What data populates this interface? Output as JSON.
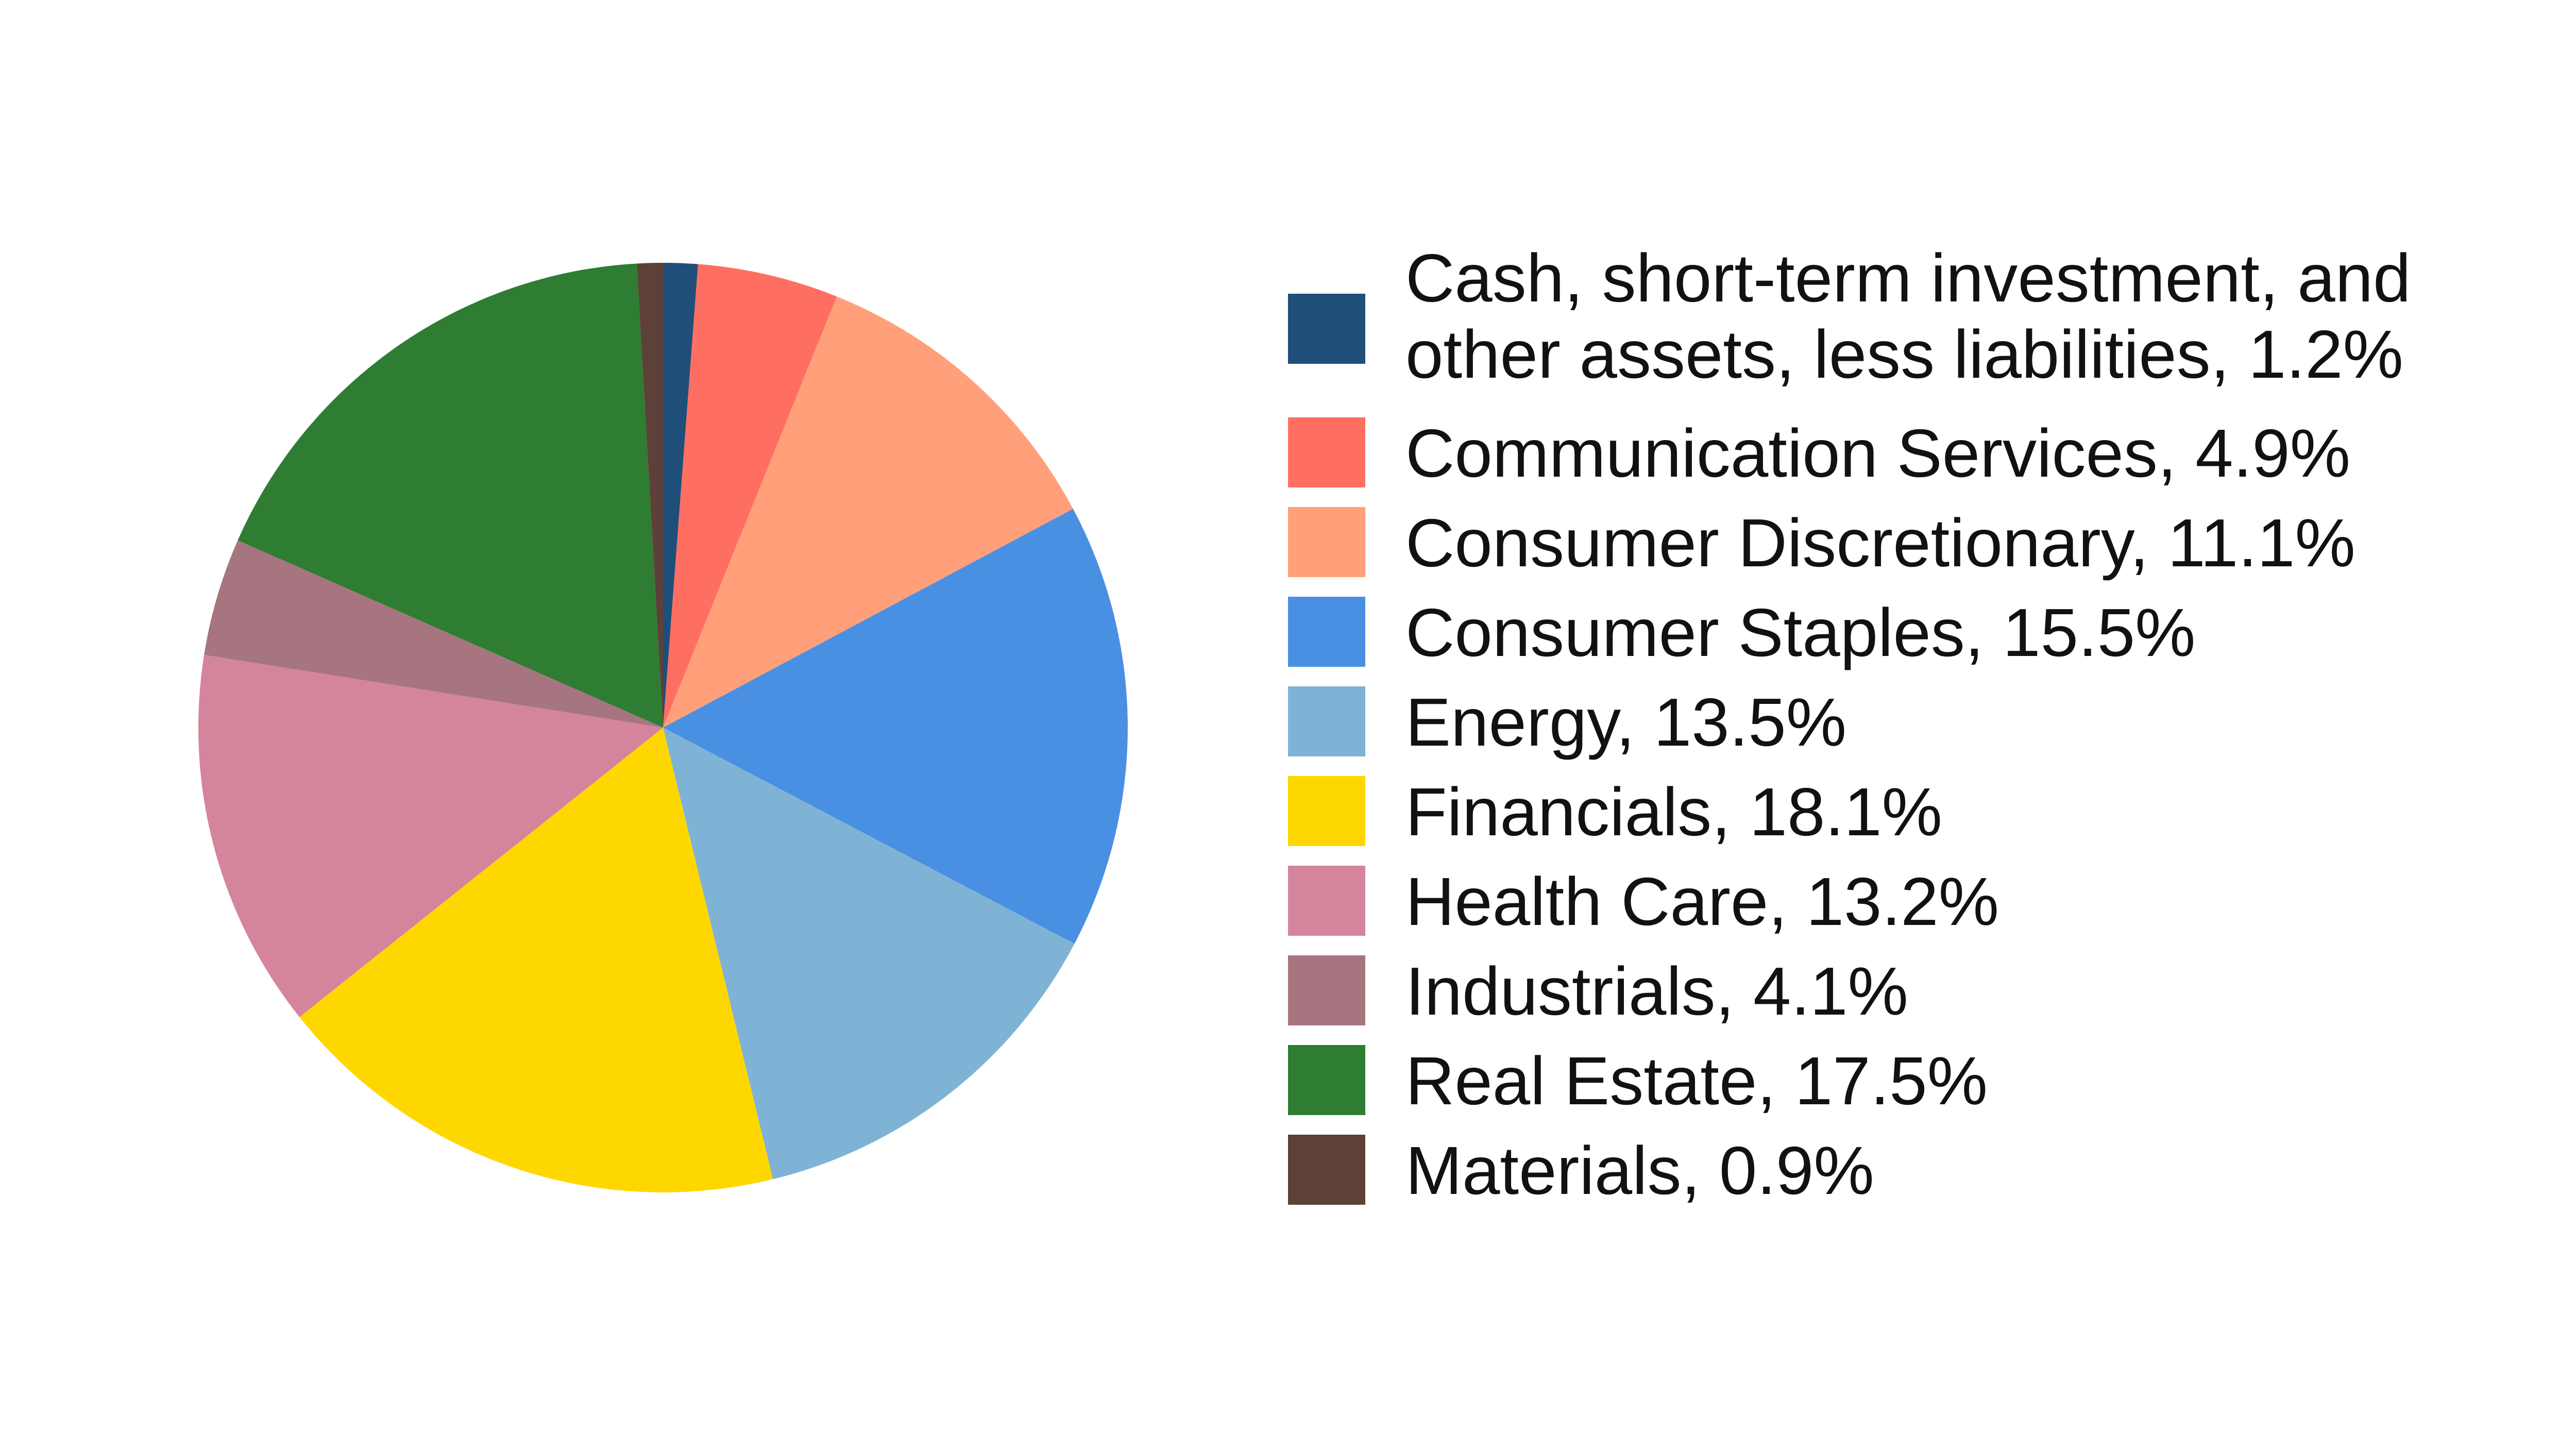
{
  "chart_data": {
    "type": "pie",
    "title": "",
    "start_angle_deg": 0,
    "direction": "clockwise",
    "series": [
      {
        "slices": [
          {
            "label": "Cash, short-term investment, and\nother assets, less liabilities, 1.2%",
            "name": "Cash, short-term investment, and other assets, less liabilities",
            "value": 1.2,
            "color": "#1f4e79"
          },
          {
            "label": "Communication Services, 4.9%",
            "name": "Communication Services",
            "value": 4.9,
            "color": "#ff6f61"
          },
          {
            "label": "Consumer Discretionary, 11.1%",
            "name": "Consumer Discretionary",
            "value": 11.1,
            "color": "#ffa07a"
          },
          {
            "label": "Consumer Staples, 15.5%",
            "name": "Consumer Staples",
            "value": 15.5,
            "color": "#4a90e2"
          },
          {
            "label": "Energy, 13.5%",
            "name": "Energy",
            "value": 13.5,
            "color": "#7fb3d5"
          },
          {
            "label": "Financials, 18.1%",
            "name": "Financials",
            "value": 18.1,
            "color": "#ffd700"
          },
          {
            "label": "Health Care, 13.2%",
            "name": "Health Care",
            "value": 13.2,
            "color": "#d4849b"
          },
          {
            "label": "Industrials, 4.1%",
            "name": "Industrials",
            "value": 4.1,
            "color": "#a67580"
          },
          {
            "label": "Real Estate, 17.5%",
            "name": "Real Estate",
            "value": 17.5,
            "color": "#2e7d32"
          },
          {
            "label": "Materials, 0.9%",
            "name": "Materials",
            "value": 0.9,
            "color": "#5d4037"
          }
        ]
      }
    ],
    "legend_position": "right"
  }
}
